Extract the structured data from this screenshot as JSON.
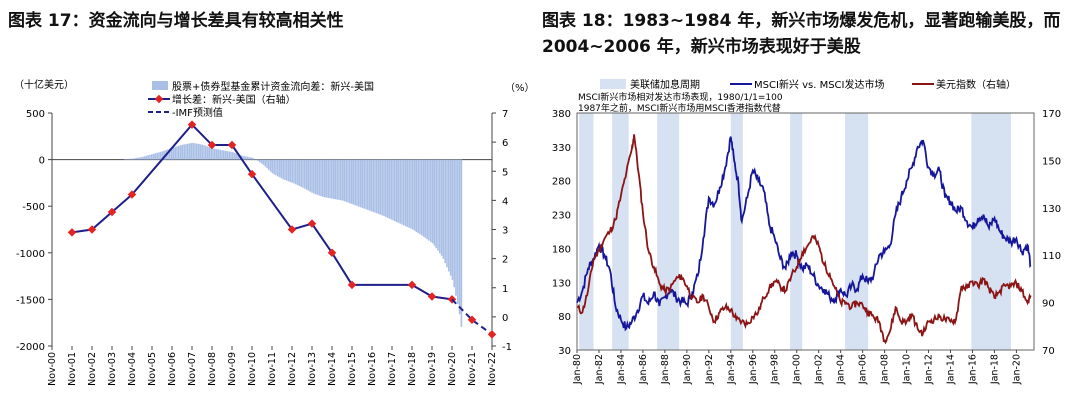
{
  "figures": {
    "left_title": "图表 17：资金流向与增长差具有较高相关性",
    "right_title": "图表 18：1983~1984 年，新兴市场爆发危机，显著跑输美股，而 2004~2006 年，新兴市场表现好于美股"
  },
  "colors": {
    "bar": "#a9bfe6",
    "line": "#1f1f8a",
    "marker": "#e32424",
    "forecast": "#1f1f8a",
    "shade": "#d6e1f2",
    "msci": "#16169a",
    "dxy": "#8b1414"
  },
  "chart_data": [
    {
      "type": "bar",
      "title": "图表 17：资金流向与增长差具有较高相关性",
      "ylabel_left": "（十亿美元）",
      "ylabel_right": "（%）",
      "ylim": [
        -2000,
        500
      ],
      "ylim_right": [
        -1,
        7
      ],
      "y_ticks": [
        "500",
        "0",
        "-500",
        "-1000",
        "-1500",
        "-2000"
      ],
      "y_ticks_right": [
        "7",
        "6",
        "5",
        "4",
        "3",
        "2",
        "1",
        "0",
        "-1"
      ],
      "x_tick_labels": [
        "Nov-00",
        "Nov-01",
        "Nov-02",
        "Nov-03",
        "Nov-04",
        "Nov-05",
        "Nov-06",
        "Nov-07",
        "Nov-08",
        "Nov-09",
        "Nov-10",
        "Nov-11",
        "Nov-12",
        "Nov-13",
        "Nov-14",
        "Nov-15",
        "Nov-16",
        "Nov-17",
        "Nov-18",
        "Nov-19",
        "Nov-20",
        "Nov-21",
        "Nov-22"
      ],
      "legend": [
        "股票+债券型基金累计资金流向差：新兴-美国",
        "增长差：新兴-美国（右轴）",
        "-IMF预测值"
      ],
      "bar_series": {
        "name": "股票+债券型基金累计资金流向差：新兴-美国",
        "x": [
          2000.9,
          2001.9,
          2002.9,
          2003.9,
          2004.9,
          2005.4,
          2005.9,
          2006.4,
          2006.9,
          2007.4,
          2007.9,
          2008.4,
          2008.9,
          2009.4,
          2009.9,
          2010.4,
          2010.9,
          2011.4,
          2011.9,
          2012.4,
          2012.9,
          2013.4,
          2013.9,
          2014.4,
          2014.9,
          2015.4,
          2015.9,
          2016.4,
          2016.9,
          2017.4,
          2017.9,
          2018.4,
          2018.9,
          2019.4,
          2019.9,
          2020.4,
          2020.9,
          2021.2,
          2021.4
        ],
        "values": [
          0,
          0,
          0,
          0,
          10,
          30,
          60,
          90,
          130,
          160,
          180,
          160,
          120,
          100,
          80,
          40,
          20,
          -50,
          -150,
          -210,
          -250,
          -300,
          -360,
          -400,
          -420,
          -440,
          -480,
          -520,
          -560,
          -600,
          -650,
          -700,
          -750,
          -820,
          -900,
          -1050,
          -1300,
          -1600,
          -1900
        ]
      },
      "series": [
        {
          "name": "增长差：新兴-美国（右轴）",
          "x": [
            2001.9,
            2002.9,
            2003.9,
            2004.9,
            2007.9,
            2008.9,
            2009.9,
            2010.9,
            2012.9,
            2013.9,
            2014.9,
            2015.9,
            2018.9,
            2019.9,
            2020.9
          ],
          "values": [
            2.9,
            3.0,
            3.6,
            4.2,
            6.6,
            5.9,
            5.9,
            4.9,
            3.0,
            3.2,
            2.2,
            1.1,
            1.1,
            0.7,
            0.6
          ]
        },
        {
          "name": "-IMF预测值",
          "x": [
            2020.9,
            2021.9,
            2022.9
          ],
          "values": [
            0.6,
            -0.1,
            -0.6
          ]
        }
      ]
    },
    {
      "type": "line",
      "title": "图表 18：1983~1984 年，新兴市场爆发危机，显著跑输美股，而 2004~2006 年，新兴市场表现好于美股",
      "ylim": [
        30,
        380
      ],
      "ylim_right": [
        70,
        170
      ],
      "y_ticks": [
        "380",
        "330",
        "280",
        "230",
        "180",
        "130",
        "80",
        "30"
      ],
      "y_ticks_right": [
        "170",
        "150",
        "130",
        "110",
        "90",
        "70"
      ],
      "x_tick_labels": [
        "Jan-80",
        "Jan-82",
        "Jan-84",
        "Jan-86",
        "Jan-88",
        "Jan-90",
        "Jan-92",
        "Jan-94",
        "Jan-96",
        "Jan-98",
        "Jan-00",
        "Jan-02",
        "Jan-04",
        "Jan-06",
        "Jan-08",
        "Jan-10",
        "Jan-12",
        "Jan-14",
        "Jan-16",
        "Jan-18",
        "Jan-20"
      ],
      "legend": [
        "美联储加息周期",
        "MSCI新兴 vs. MSCI发达市场",
        "美元指数（右轴）"
      ],
      "notes": [
        "MSCI新兴市场相对发达市场表现，1980/1/1=100",
        "1987年之前，MSCI新兴市场用MSCI香港指数代替"
      ],
      "shaded_periods": [
        [
          1980.2,
          1981.5
        ],
        [
          1983.2,
          1984.7
        ],
        [
          1987.3,
          1989.3
        ],
        [
          1994.0,
          1995.1
        ],
        [
          1999.4,
          2000.5
        ],
        [
          2004.4,
          2006.5
        ],
        [
          2015.9,
          2019.5
        ]
      ],
      "series": [
        {
          "name": "MSCI新兴 vs. MSCI发达市场",
          "x": [
            1980.0,
            1980.5,
            1981.0,
            1981.5,
            1982.0,
            1982.5,
            1983.0,
            1983.5,
            1984.0,
            1984.5,
            1985.0,
            1985.5,
            1986.0,
            1986.5,
            1987.0,
            1987.5,
            1988.0,
            1988.5,
            1989.0,
            1989.5,
            1990.0,
            1990.5,
            1991.0,
            1991.5,
            1992.0,
            1992.5,
            1993.0,
            1993.5,
            1994.0,
            1994.3,
            1994.7,
            1995.0,
            1995.5,
            1996.0,
            1996.5,
            1997.0,
            1997.5,
            1998.0,
            1998.5,
            1999.0,
            1999.5,
            2000.0,
            2000.5,
            2001.0,
            2001.5,
            2002.0,
            2002.5,
            2003.0,
            2003.5,
            2004.0,
            2004.5,
            2005.0,
            2005.5,
            2006.0,
            2006.5,
            2007.0,
            2007.5,
            2008.0,
            2008.5,
            2009.0,
            2009.5,
            2010.0,
            2010.5,
            2011.0,
            2011.5,
            2012.0,
            2012.5,
            2013.0,
            2013.5,
            2014.0,
            2014.5,
            2015.0,
            2015.5,
            2016.0,
            2016.5,
            2017.0,
            2017.5,
            2018.0,
            2018.5,
            2019.0,
            2019.5,
            2020.0,
            2020.5,
            2021.0,
            2021.3
          ],
          "values": [
            100,
            118,
            150,
            165,
            185,
            170,
            148,
            95,
            75,
            62,
            72,
            88,
            110,
            98,
            115,
            95,
            108,
            120,
            108,
            102,
            98,
            115,
            140,
            195,
            255,
            245,
            270,
            300,
            345,
            310,
            275,
            220,
            255,
            295,
            280,
            265,
            215,
            195,
            165,
            150,
            175,
            170,
            150,
            155,
            140,
            125,
            120,
            108,
            105,
            120,
            110,
            125,
            120,
            140,
            130,
            140,
            170,
            175,
            185,
            230,
            255,
            280,
            300,
            330,
            340,
            300,
            290,
            295,
            255,
            250,
            235,
            240,
            220,
            210,
            225,
            230,
            210,
            225,
            205,
            195,
            190,
            195,
            175,
            185,
            155
          ],
          "min_max_estimate": true
        },
        {
          "name": "美元指数（右轴）",
          "x": [
            1980.0,
            1980.5,
            1981.0,
            1981.5,
            1982.0,
            1982.5,
            1983.0,
            1983.5,
            1984.0,
            1984.5,
            1985.0,
            1985.2,
            1985.6,
            1986.0,
            1986.5,
            1987.0,
            1987.5,
            1988.0,
            1988.5,
            1989.0,
            1989.5,
            1990.0,
            1990.5,
            1991.0,
            1991.5,
            1992.0,
            1992.5,
            1993.0,
            1993.5,
            1994.0,
            1994.5,
            1995.0,
            1995.5,
            1996.0,
            1996.5,
            1997.0,
            1997.5,
            1998.0,
            1998.5,
            1999.0,
            1999.5,
            2000.0,
            2000.5,
            2001.0,
            2001.5,
            2002.0,
            2002.5,
            2003.0,
            2003.5,
            2004.0,
            2004.5,
            2005.0,
            2005.5,
            2006.0,
            2006.5,
            2007.0,
            2007.5,
            2008.0,
            2008.5,
            2009.0,
            2009.5,
            2010.0,
            2010.5,
            2011.0,
            2011.5,
            2012.0,
            2012.5,
            2013.0,
            2013.5,
            2014.0,
            2014.5,
            2015.0,
            2015.5,
            2016.0,
            2016.5,
            2017.0,
            2017.5,
            2018.0,
            2018.5,
            2019.0,
            2019.5,
            2020.0,
            2020.5,
            2021.0,
            2021.3
          ],
          "values": [
            88,
            86,
            95,
            108,
            112,
            117,
            120,
            125,
            135,
            145,
            155,
            161,
            145,
            128,
            112,
            105,
            98,
            95,
            96,
            100,
            101,
            97,
            92,
            90,
            93,
            88,
            82,
            86,
            88,
            87,
            83,
            82,
            81,
            84,
            86,
            92,
            96,
            99,
            97,
            95,
            101,
            105,
            111,
            114,
            118,
            114,
            106,
            102,
            96,
            90,
            90,
            88,
            90,
            89,
            86,
            84,
            82,
            74,
            78,
            88,
            82,
            82,
            85,
            79,
            77,
            82,
            83,
            84,
            83,
            82,
            83,
            97,
            96,
            99,
            97,
            100,
            96,
            92,
            95,
            97,
            97,
            98,
            95,
            90,
            93
          ]
        }
      ]
    }
  ]
}
